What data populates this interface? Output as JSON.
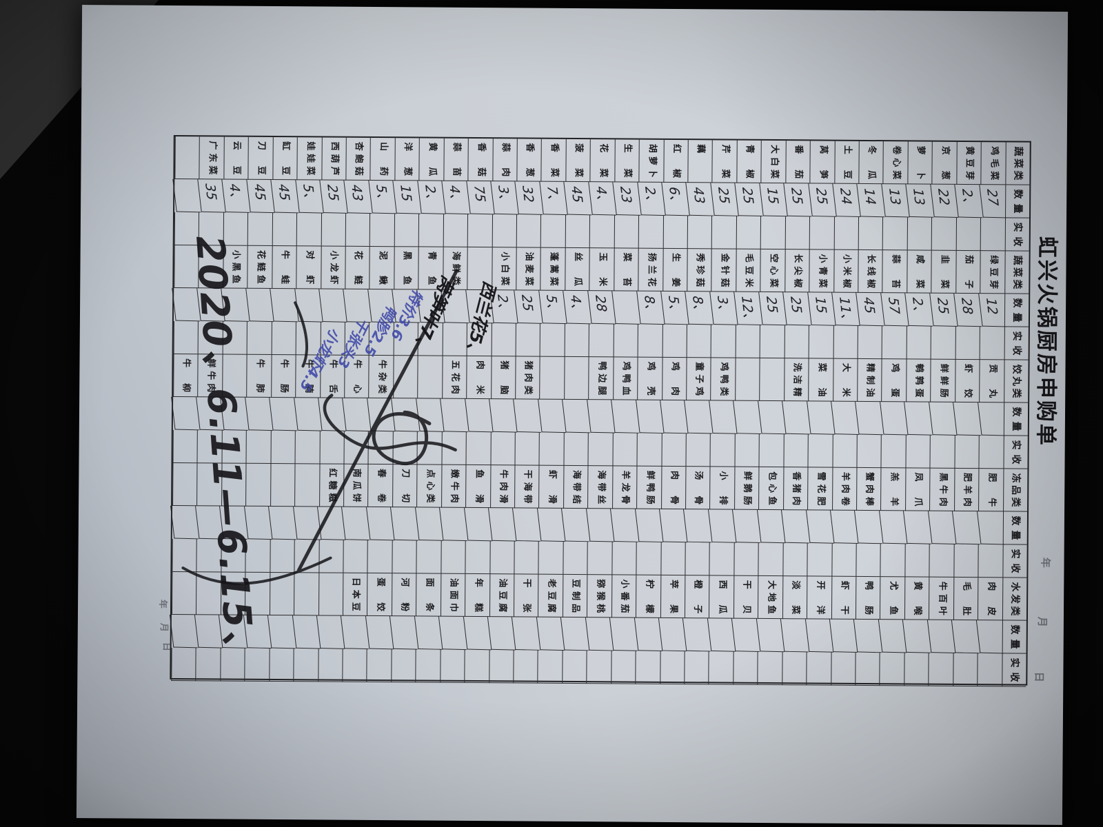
{
  "title": "虹兴火锅厨房申购单",
  "date_line_top": {
    "year": "年",
    "month": "月",
    "day": "日"
  },
  "date_line_bottom": {
    "year": "年",
    "month": "月",
    "day": "日"
  },
  "annotations": {
    "handwritten_date": "2020、6.11—6.15、",
    "xilanhua_note": "西兰花5、",
    "qingyu_note": "莴笋叶7、",
    "blue_notes": [
      "特价3.6",
      "鸭胗2.5",
      "干张头3",
      "小龙虾4.5"
    ]
  },
  "colors": {
    "paper": "#c9ced5",
    "ink": "#1d1d20",
    "blue_ink": "#3f48a8",
    "background": "#070707"
  },
  "table": {
    "headers": [
      "蔬菜类",
      "数量",
      "实收",
      "蔬菜类",
      "数量",
      "实收",
      "饺丸类",
      "数量",
      "实收",
      "冻品类",
      "数量",
      "实收",
      "水发类",
      "数量",
      "实收"
    ],
    "rows": [
      {
        "veg1": "鸡毛菜",
        "qty1": "27",
        "veg2": "绿豆芽",
        "qty2": "12",
        "jiao": "贡丸",
        "dong": "肥牛",
        "shui": "肉皮"
      },
      {
        "veg1": "黄豆芽",
        "qty1": "2、",
        "veg2": "茄子",
        "qty2": "28",
        "jiao": "虾饺",
        "dong": "肥羊肉",
        "shui": "毛肚"
      },
      {
        "veg1": "京葱",
        "qty1": "22",
        "veg2": "韭菜",
        "qty2": "25",
        "jiao": "鲜鲜肠",
        "dong": "黑牛肉",
        "shui": "牛百叶"
      },
      {
        "veg1": "萝卜",
        "qty1": "13",
        "veg2": "咸菜",
        "qty2": "2、",
        "jiao": "鹌鹑蛋",
        "dong": "凤爪",
        "shui": "黄喉"
      },
      {
        "veg1": "卷心菜",
        "qty1": "13",
        "veg2": "蒜苔",
        "qty2": "57",
        "jiao": "鸡蛋",
        "dong": "羔羊",
        "shui": "尤鱼"
      },
      {
        "veg1": "冬瓜",
        "qty1": "14",
        "veg2": "长线椒",
        "qty2": "45",
        "jiao": "精制油",
        "dong": "蟹肉棒",
        "shui": "鸭肠"
      },
      {
        "veg1": "土豆",
        "qty1": "24",
        "veg2": "小米椒",
        "qty2": "11、",
        "jiao": "大米",
        "dong": "羊肉卷",
        "shui": "虾干"
      },
      {
        "veg1": "莴笋",
        "qty1": "25",
        "veg2": "小青菜",
        "qty2": "15",
        "jiao": "菜油",
        "dong": "雪花肥牛",
        "shui": "开洋"
      },
      {
        "veg1": "番茄",
        "qty1": "25",
        "veg2": "长尖椒",
        "qty2": "25",
        "jiao": "洗洁精",
        "dong": "香猪肉",
        "shui": "淡菜"
      },
      {
        "veg1": "大白菜",
        "qty1": "15",
        "veg2": "空心菜",
        "qty2": "25",
        "jiao": "",
        "dong": "包心鱼丸",
        "shui": "大地鱼干"
      },
      {
        "veg1": "青椒",
        "qty1": "25",
        "veg2": "毛豆米",
        "qty2": "12、",
        "jiao": "",
        "dong": "鲜鹅肠",
        "shui": "干贝"
      },
      {
        "veg1": "芹菜",
        "qty1": "25",
        "veg2": "金针菇",
        "qty2": "3、",
        "jiao": "鸡鸭类",
        "dong": "小排",
        "shui": "西瓜"
      },
      {
        "veg1": "藕",
        "qty1": "43",
        "veg2": "秀珍菇",
        "qty2": "8、",
        "jiao": "童子鸡",
        "dong": "汤骨",
        "shui": "橙子"
      },
      {
        "veg1": "红椒",
        "qty1": "6、",
        "veg2": "生姜",
        "qty2": "5、",
        "jiao": "鸡肉",
        "dong": "肉骨",
        "shui": "苹果"
      },
      {
        "veg1": "胡萝卜",
        "qty1": "2、",
        "veg2": "扬兰花",
        "qty2": "8、",
        "jiao": "鸡壳",
        "dong": "鲜鸭肠",
        "shui": "柠檬"
      },
      {
        "veg1": "生菜",
        "qty1": "23",
        "veg2": "菜苔",
        "qty2": "",
        "jiao": "鸡鸭血",
        "dong": "羊龙骨",
        "shui": "小番茄"
      },
      {
        "veg1": "花菜",
        "qty1": "4、",
        "veg2": "玉米",
        "qty2": "28",
        "jiao": "鸭边腿",
        "dong": "海带丝",
        "shui": "猕猴桃"
      },
      {
        "veg1": "菠菜",
        "qty1": "45",
        "veg2": "丝瓜",
        "qty2": "4、",
        "jiao": "",
        "dong": "海带结",
        "shui": "豆制品类"
      },
      {
        "veg1": "香菜",
        "qty1": "7、",
        "veg2": "蓬蒿菜",
        "qty2": "5、",
        "jiao": "",
        "dong": "虾滑",
        "shui": "老豆腐"
      },
      {
        "veg1": "香葱",
        "qty1": "32",
        "veg2": "油麦菜",
        "qty2": "25",
        "jiao": "猪肉类",
        "dong": "干海带",
        "shui": "干张"
      },
      {
        "veg1": "蒜肉",
        "qty1": "3、",
        "veg2": "小白菜",
        "qty2": "2、",
        "jiao": "猪脑",
        "dong": "牛肉滑",
        "shui": "油豆腐"
      },
      {
        "veg1": "香菇",
        "qty1": "75",
        "veg2": "",
        "qty2": "",
        "jiao": "肉米",
        "dong": "鱼滑",
        "shui": "年糕"
      },
      {
        "veg1": "蒜苗",
        "qty1": "4、",
        "veg2": "海鲜类",
        "qty2": "",
        "jiao": "五花肉",
        "dong": "嫩牛肉",
        "shui": "油面巾"
      },
      {
        "veg1": "黄瓜",
        "qty1": "2、",
        "veg2": "青鱼",
        "qty2": "",
        "jiao": "",
        "dong": "点心类",
        "shui": "面条"
      },
      {
        "veg1": "洋葱",
        "qty1": "15",
        "veg2": "黑鱼",
        "qty2": "",
        "jiao": "",
        "dong": "刀切",
        "shui": "河粉"
      },
      {
        "veg1": "山药",
        "qty1": "5、",
        "veg2": "泥鳅",
        "qty2": "",
        "jiao": "牛杂类",
        "dong": "春卷",
        "shui": "蛋饺"
      },
      {
        "veg1": "杏鲍菇",
        "qty1": "43",
        "veg2": "花鲢",
        "qty2": "",
        "jiao": "牛心",
        "dong": "南瓜饼",
        "shui": "日本豆腐"
      },
      {
        "veg1": "西葫芦",
        "qty1": "25",
        "veg2": "小龙虾",
        "qty2": "",
        "jiao": "牛舌",
        "dong": "红糖糍粑",
        "shui": ""
      },
      {
        "veg1": "娃娃菜",
        "qty1": "5、",
        "veg2": "对虾",
        "qty2": "",
        "jiao": "牛腩",
        "dong": "",
        "shui": ""
      },
      {
        "veg1": "缸豆",
        "qty1": "45",
        "veg2": "牛蛙",
        "qty2": "",
        "jiao": "牛肠",
        "dong": "",
        "shui": ""
      },
      {
        "veg1": "刀豆",
        "qty1": "45",
        "veg2": "花鲢鱼头",
        "qty2": "",
        "jiao": "牛肺",
        "dong": "",
        "shui": ""
      },
      {
        "veg1": "云豆",
        "qty1": "4、",
        "veg2": "小黑鱼",
        "qty2": "",
        "jiao": "",
        "dong": "",
        "shui": ""
      },
      {
        "veg1": "广东菜心",
        "qty1": "35",
        "veg2": "",
        "qty2": "",
        "jiao": "鲜牛肉",
        "dong": "",
        "shui": ""
      },
      {
        "veg1": "",
        "qty1": "",
        "veg2": "",
        "qty2": "",
        "jiao": "牛柳",
        "dong": "",
        "shui": ""
      }
    ]
  }
}
